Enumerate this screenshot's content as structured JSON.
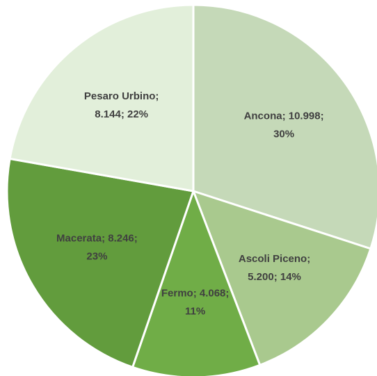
{
  "chart_data": {
    "type": "pie",
    "values": [
      10998,
      5200,
      4068,
      8246,
      8144
    ],
    "value_labels": [
      [
        "Ancona; 10.998;",
        "30%"
      ],
      [
        "Ascoli Piceno;",
        "5.200; 14%"
      ],
      [
        "Fermo; 4.068;",
        "11%"
      ],
      [
        "Macerata; 8.246;",
        "23%"
      ],
      [
        "Pesaro Urbino;",
        "8.144; 22%"
      ]
    ],
    "colors": [
      "#c5d9b8",
      "#a9c98e",
      "#70ad47",
      "#629c3d",
      "#e2efda"
    ]
  }
}
